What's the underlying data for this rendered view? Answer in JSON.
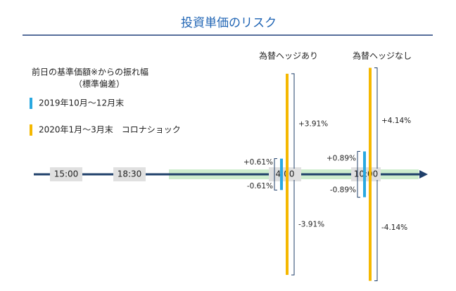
{
  "header": {
    "title": "投資単価のリスク"
  },
  "legend": {
    "heading": "前日の基準価額※からの振れ幅",
    "subheading": "（標準偏差）",
    "items": [
      {
        "label": "2019年10月～12月末",
        "color": "#29a8e0"
      },
      {
        "label": "2020年1月～3月末　コロナショック",
        "color": "#f5b800"
      }
    ]
  },
  "times": [
    "15:00",
    "18:30",
    "4:00",
    "10:00"
  ],
  "columns": [
    {
      "header": "為替ヘッジあり",
      "values": [
        0.61,
        3.91
      ],
      "labels": [
        [
          "+0.61%",
          "-0.61%"
        ],
        [
          "+3.91%",
          "-3.91%"
        ]
      ]
    },
    {
      "header": "為替ヘッジなし",
      "values": [
        0.89,
        4.14
      ],
      "labels": [
        [
          "+0.89%",
          "-0.89%"
        ],
        [
          "+4.14%",
          "-4.14%"
        ]
      ]
    }
  ]
}
